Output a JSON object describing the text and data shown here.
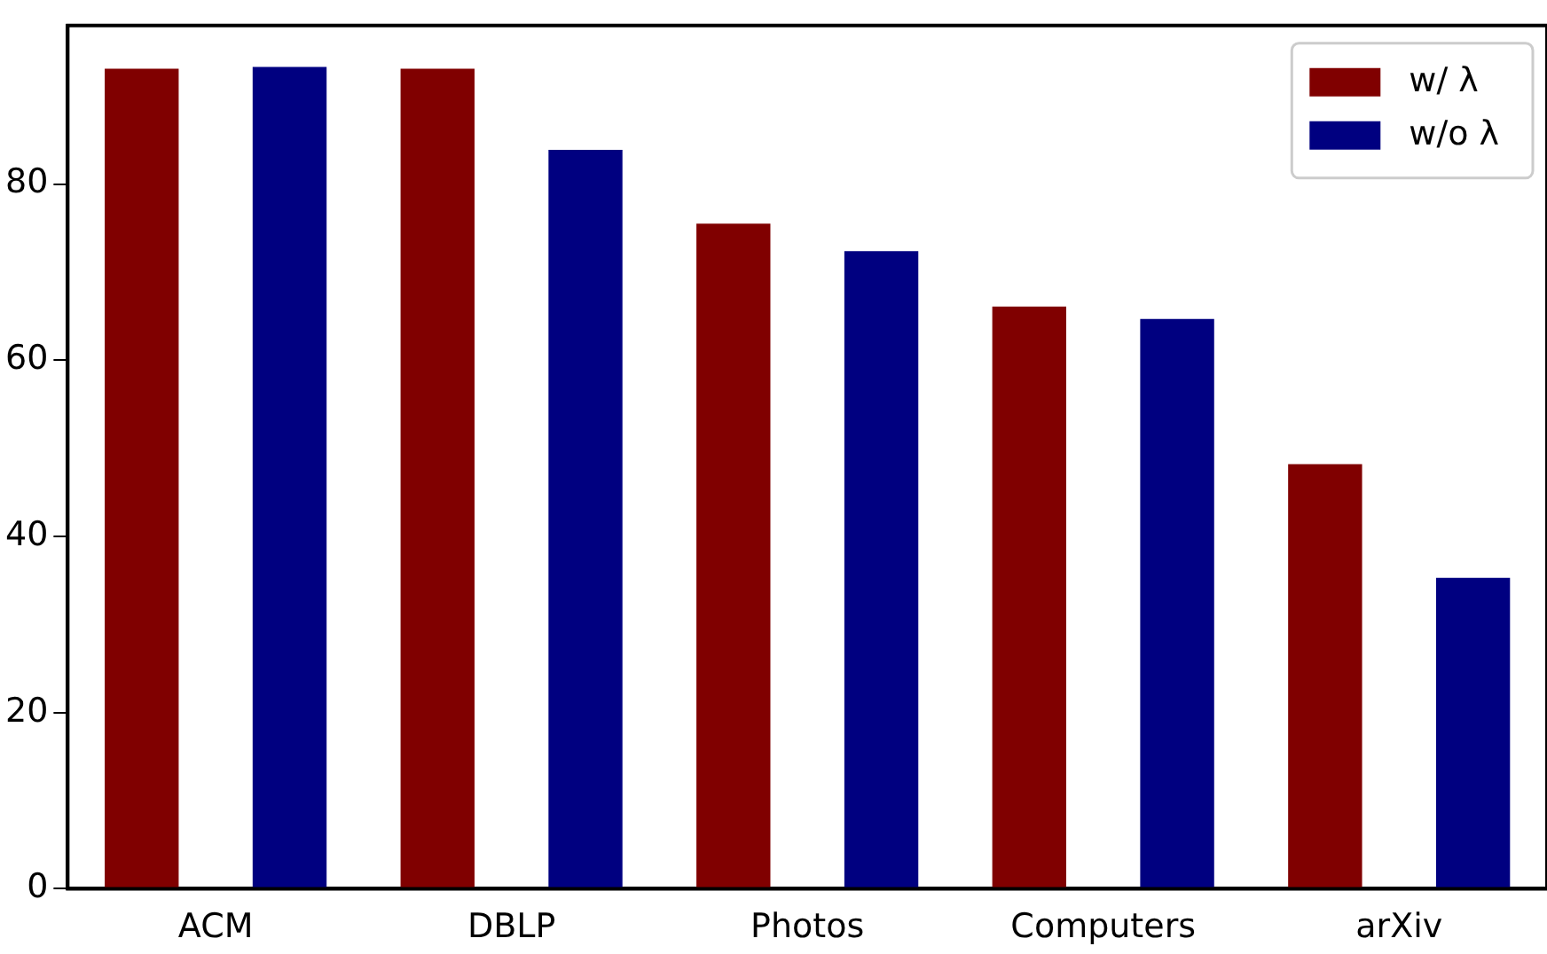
{
  "chart_data": {
    "type": "bar",
    "categories": [
      "ACM",
      "DBLP",
      "Photos",
      "Computers",
      "arXiv"
    ],
    "series": [
      {
        "name": "w/ λ",
        "color": "#800000",
        "values": [
          93.1,
          93.1,
          75.5,
          66.1,
          48.2
        ]
      },
      {
        "name": "w/o λ",
        "color": "#000080",
        "values": [
          93.3,
          83.9,
          72.4,
          64.7,
          35.3
        ]
      }
    ],
    "ylim": [
      0,
      98
    ],
    "yticks": [
      0,
      20,
      40,
      60,
      80
    ],
    "grid": false,
    "legend": "top right"
  }
}
